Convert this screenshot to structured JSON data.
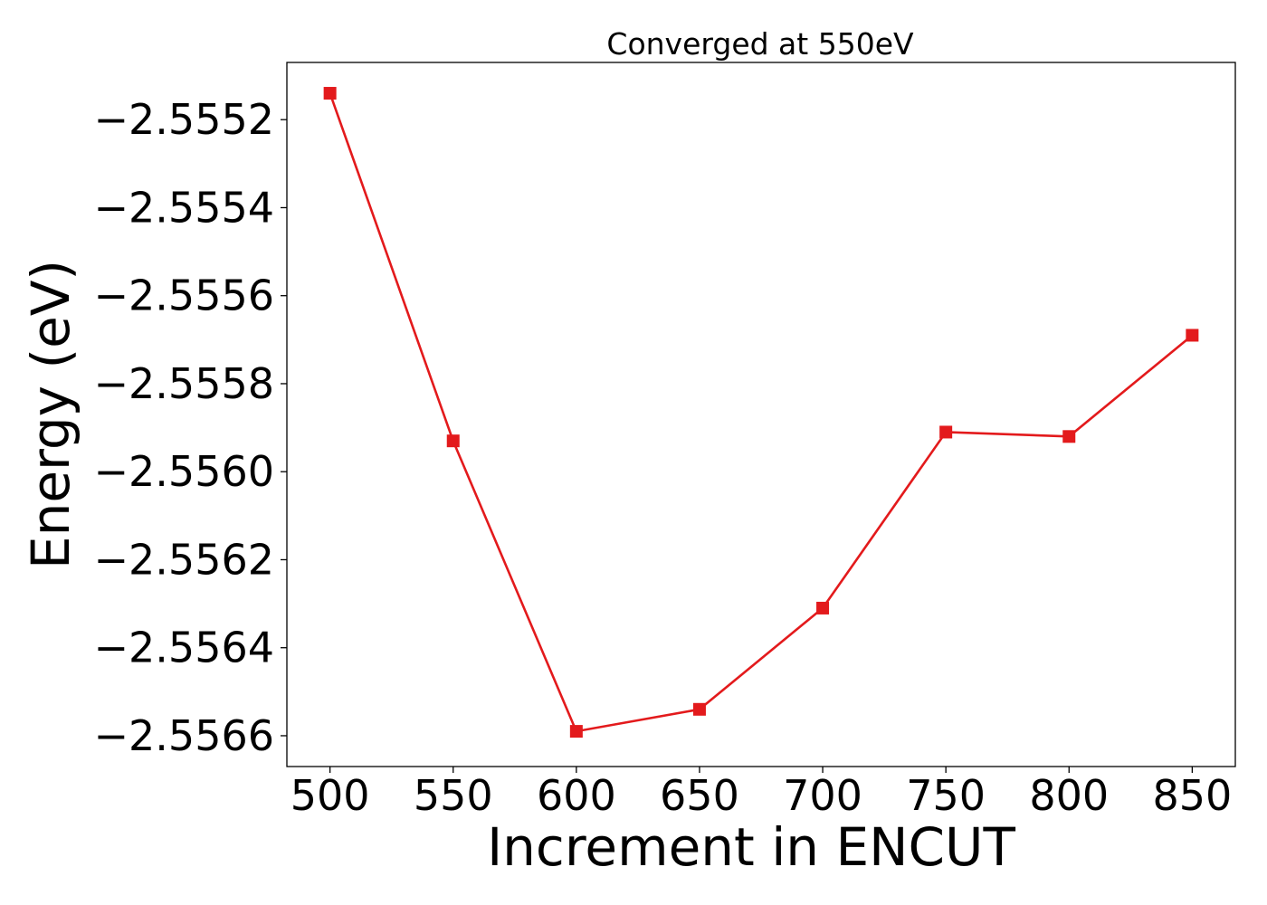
{
  "chart_data": {
    "type": "line",
    "title": "Converged at 550eV",
    "xlabel": "Increment in ENCUT",
    "ylabel": "Energy (eV)",
    "x": [
      500,
      550,
      600,
      650,
      700,
      750,
      800,
      850
    ],
    "series": [
      {
        "values": [
          -2.55514,
          -2.55593,
          -2.55659,
          -2.55654,
          -2.55631,
          -2.55591,
          -2.55592,
          -2.55569
        ],
        "color": "#e31a1c",
        "marker": "square"
      }
    ],
    "xlim": [
      482.5,
      867.5
    ],
    "ylim": [
      -2.55667,
      -2.55507
    ],
    "x_ticks": [
      500,
      550,
      600,
      650,
      700,
      750,
      800,
      850
    ],
    "x_tick_labels": [
      "500",
      "550",
      "600",
      "650",
      "700",
      "750",
      "800",
      "850"
    ],
    "y_ticks": [
      -2.5552,
      -2.5554,
      -2.5556,
      -2.5558,
      -2.556,
      -2.5562,
      -2.5564,
      -2.5566
    ],
    "y_tick_labels": [
      "−2.5552",
      "−2.5554",
      "−2.5556",
      "−2.5558",
      "−2.5560",
      "−2.5562",
      "−2.5564",
      "−2.5566"
    ],
    "grid": false,
    "legend": "none"
  }
}
